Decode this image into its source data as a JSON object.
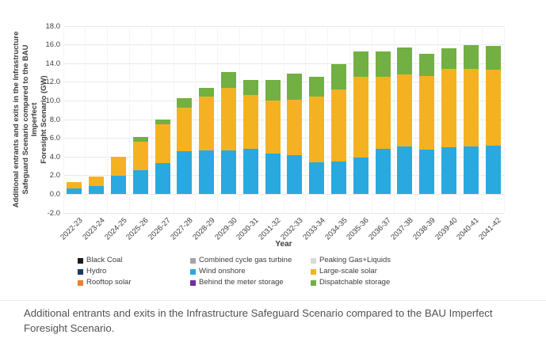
{
  "chart_data": {
    "type": "bar",
    "stacked": true,
    "xlabel": "Year",
    "ylabel_lines": [
      "Additional entrants and exits in the Infrastructure",
      "Safeguard Scenario compared to the BAU Imperfect",
      "Foresight Scenario (GW)"
    ],
    "ylim": [
      -2,
      18
    ],
    "ytick_step": 2,
    "grid": true,
    "legend_position": "bottom",
    "categories": [
      "2022-23",
      "2023-24",
      "2024-25",
      "2025-26",
      "2026-27",
      "2027-28",
      "2028-29",
      "2029-30",
      "2030-31",
      "2031-32",
      "2032-33",
      "2033-34",
      "2034-35",
      "2035-36",
      "2036-37",
      "2037-38",
      "2038-39",
      "2039-40",
      "2040-41",
      "2041-42"
    ],
    "series": [
      {
        "name": "Black Coal",
        "color": "#1a1a1a",
        "values": [
          0,
          0,
          0,
          0,
          0,
          0,
          0,
          0,
          0,
          0,
          0,
          0,
          0,
          0,
          0,
          0,
          0,
          0,
          0,
          0
        ]
      },
      {
        "name": "Combined cycle gas turbine",
        "color": "#a5a5a5",
        "values": [
          0,
          0,
          0,
          0,
          0,
          0,
          0,
          0,
          0,
          0,
          0,
          0,
          0,
          0,
          0,
          0,
          0,
          0,
          0,
          0
        ]
      },
      {
        "name": "Peaking Gas+Liquids",
        "color": "#d9d9d9",
        "values": [
          0,
          0,
          0,
          0,
          0,
          0,
          0,
          0,
          0,
          0,
          0,
          0,
          0,
          0,
          0,
          0,
          0,
          0,
          0,
          0
        ]
      },
      {
        "name": "Hydro",
        "color": "#1f3864",
        "values": [
          0,
          0,
          0,
          0,
          0,
          0,
          0,
          0,
          0,
          0,
          0,
          0,
          0,
          0,
          0,
          0,
          0,
          0,
          0,
          0
        ]
      },
      {
        "name": "Wind onshore",
        "color": "#29a9e0",
        "values": [
          0.6,
          0.9,
          2.0,
          2.6,
          3.3,
          4.6,
          4.7,
          4.7,
          4.9,
          4.4,
          4.2,
          3.4,
          3.5,
          3.9,
          4.9,
          5.1,
          4.8,
          5.0,
          5.1,
          5.2
        ]
      },
      {
        "name": "Large-scale solar",
        "color": "#f4b223",
        "values": [
          0.7,
          1.0,
          2.0,
          3.0,
          4.2,
          4.7,
          5.8,
          6.7,
          5.7,
          5.6,
          5.9,
          7.1,
          7.7,
          8.7,
          7.7,
          7.7,
          7.9,
          8.4,
          8.3,
          8.1
        ]
      },
      {
        "name": "Rooftop solar",
        "color": "#ed7d31",
        "values": [
          0,
          0,
          0,
          0,
          0,
          0,
          0,
          0,
          0,
          0,
          0,
          0,
          0,
          0,
          0,
          0,
          0,
          0,
          0,
          0
        ]
      },
      {
        "name": "Behind the meter storage",
        "color": "#7030a0",
        "values": [
          0,
          0,
          0,
          0,
          0,
          0,
          0,
          0,
          0,
          0,
          0,
          0,
          0,
          0,
          0,
          0,
          0,
          0,
          0,
          0
        ]
      },
      {
        "name": "Dispatchable storage",
        "color": "#72b043",
        "values": [
          0,
          0,
          0,
          0.5,
          0.5,
          1.0,
          0.9,
          1.7,
          1.6,
          2.2,
          2.8,
          2.1,
          2.7,
          2.7,
          2.7,
          2.9,
          2.3,
          2.2,
          2.6,
          2.6
        ]
      }
    ]
  },
  "caption": "Additional entrants and exits in the Infrastructure Safeguard Scenario compared to the BAU Imperfect Foresight Scenario.",
  "colors": {
    "axis_text": "#3d3d3d",
    "gridline": "#e9e9e9",
    "caption_text": "#525252"
  }
}
